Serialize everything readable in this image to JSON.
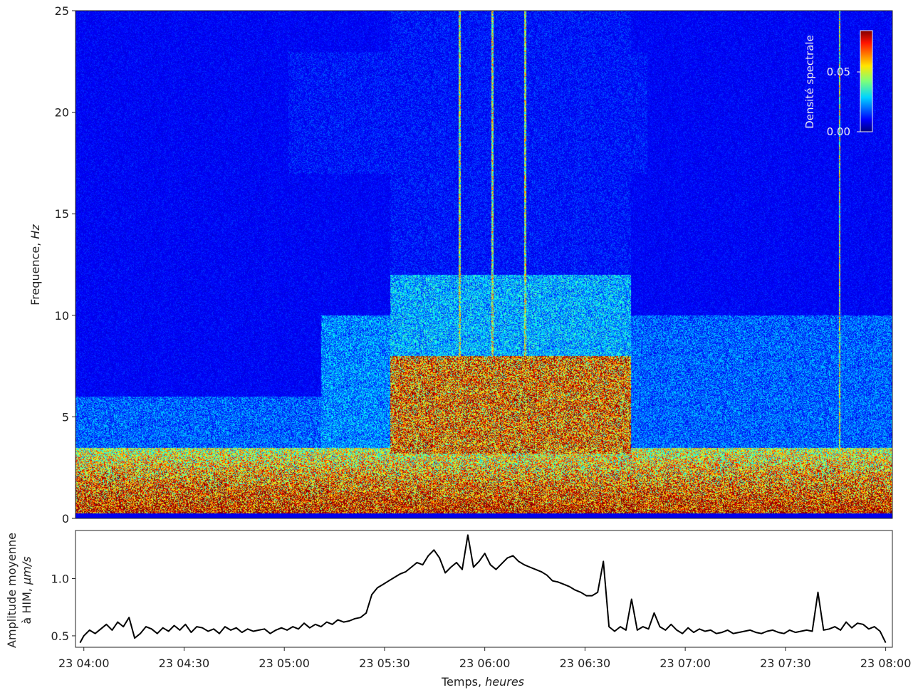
{
  "chart_data": [
    {
      "type": "heatmap",
      "ylabel_main": "Frequence, ",
      "ylabel_unit": "Hz",
      "yticks": [
        "0",
        "5",
        "10",
        "15",
        "20",
        "25"
      ],
      "ylim": [
        0,
        25
      ],
      "colorbar": {
        "label": "Densité spectrale",
        "ticks": [
          "0.00",
          "0.05"
        ],
        "range": [
          0.0,
          0.07
        ],
        "colormap": "jet",
        "placement": "top-right"
      },
      "x_start": "23 03:57",
      "x_end": "23 08:02",
      "bursts": [
        {
          "time": "23 05:36",
          "note": "broadband energy increase 3–12 Hz"
        },
        {
          "time": "23 06:45",
          "note": "energy decrease"
        }
      ],
      "colors": {
        "background": "#00008f",
        "high": "#8b0000"
      }
    },
    {
      "type": "line",
      "ylabel_line1": "Amplitude moyenne",
      "ylabel_line2": "à HIM, ",
      "ylabel_unit": "μm/s",
      "yticks": [
        "0.5",
        "1.0"
      ],
      "ylim": [
        0.4,
        1.42
      ],
      "xlabel_main": "Temps, ",
      "xlabel_unit": "heures",
      "xticks": [
        "23 04:00",
        "23 04:30",
        "23 05:00",
        "23 05:30",
        "23 06:00",
        "23 06:30",
        "23 07:00",
        "23 07:30",
        "23 08:00"
      ],
      "x_range_minutes": [
        -2.5,
        242
      ],
      "series": [
        {
          "color": "#000000",
          "points": [
            [
              -2,
              0.44
            ],
            [
              0,
              0.5
            ],
            [
              3,
              0.55
            ],
            [
              6,
              0.52
            ],
            [
              9,
              0.56
            ],
            [
              12,
              0.6
            ],
            [
              15,
              0.55
            ],
            [
              18,
              0.62
            ],
            [
              21,
              0.58
            ],
            [
              24,
              0.66
            ],
            [
              27,
              0.48
            ],
            [
              30,
              0.52
            ],
            [
              33,
              0.58
            ],
            [
              36,
              0.56
            ],
            [
              39,
              0.52
            ],
            [
              42,
              0.57
            ],
            [
              45,
              0.54
            ],
            [
              48,
              0.59
            ],
            [
              51,
              0.55
            ],
            [
              54,
              0.6
            ],
            [
              57,
              0.53
            ],
            [
              60,
              0.58
            ],
            [
              63,
              0.57
            ],
            [
              66,
              0.54
            ],
            [
              69,
              0.56
            ],
            [
              72,
              0.52
            ],
            [
              75,
              0.58
            ],
            [
              78,
              0.55
            ],
            [
              81,
              0.57
            ],
            [
              84,
              0.53
            ],
            [
              87,
              0.56
            ],
            [
              90,
              0.54
            ],
            [
              93,
              0.55
            ],
            [
              96,
              0.56
            ],
            [
              99,
              0.52
            ],
            [
              102,
              0.55
            ],
            [
              105,
              0.57
            ],
            [
              108,
              0.55
            ],
            [
              111,
              0.58
            ],
            [
              114,
              0.56
            ],
            [
              117,
              0.61
            ],
            [
              120,
              0.57
            ],
            [
              123,
              0.6
            ],
            [
              126,
              0.58
            ],
            [
              129,
              0.62
            ],
            [
              132,
              0.6
            ],
            [
              135,
              0.64
            ],
            [
              138,
              0.62
            ],
            [
              141,
              0.63
            ],
            [
              144,
              0.65
            ],
            [
              147,
              0.66
            ],
            [
              150,
              0.7
            ],
            [
              153,
              0.86
            ],
            [
              156,
              0.92
            ],
            [
              159,
              0.95
            ],
            [
              162,
              0.98
            ],
            [
              165,
              1.01
            ],
            [
              168,
              1.04
            ],
            [
              171,
              1.06
            ],
            [
              174,
              1.1
            ],
            [
              177,
              1.14
            ],
            [
              180,
              1.12
            ],
            [
              183,
              1.2
            ],
            [
              186,
              1.25
            ],
            [
              189,
              1.18
            ],
            [
              192,
              1.05
            ],
            [
              195,
              1.1
            ],
            [
              198,
              1.14
            ],
            [
              201,
              1.08
            ],
            [
              204,
              1.38
            ],
            [
              207,
              1.1
            ],
            [
              210,
              1.15
            ],
            [
              213,
              1.22
            ],
            [
              216,
              1.12
            ],
            [
              219,
              1.08
            ],
            [
              222,
              1.13
            ],
            [
              225,
              1.18
            ],
            [
              228,
              1.2
            ],
            [
              231,
              1.15
            ],
            [
              234,
              1.12
            ],
            [
              237,
              1.1
            ],
            [
              240,
              1.08
            ],
            [
              243,
              1.06
            ],
            [
              246,
              1.03
            ],
            [
              249,
              0.98
            ],
            [
              252,
              0.97
            ],
            [
              255,
              0.95
            ],
            [
              258,
              0.93
            ],
            [
              261,
              0.9
            ],
            [
              264,
              0.88
            ],
            [
              267,
              0.85
            ],
            [
              270,
              0.85
            ],
            [
              273,
              0.88
            ],
            [
              276,
              1.15
            ],
            [
              279,
              0.58
            ],
            [
              282,
              0.54
            ],
            [
              285,
              0.58
            ],
            [
              288,
              0.55
            ],
            [
              291,
              0.82
            ],
            [
              294,
              0.55
            ],
            [
              297,
              0.58
            ],
            [
              300,
              0.56
            ],
            [
              303,
              0.7
            ],
            [
              306,
              0.58
            ],
            [
              309,
              0.55
            ],
            [
              312,
              0.6
            ],
            [
              315,
              0.55
            ],
            [
              318,
              0.52
            ],
            [
              321,
              0.57
            ],
            [
              324,
              0.53
            ],
            [
              327,
              0.56
            ],
            [
              330,
              0.54
            ],
            [
              333,
              0.55
            ],
            [
              336,
              0.52
            ],
            [
              339,
              0.53
            ],
            [
              342,
              0.55
            ],
            [
              345,
              0.52
            ],
            [
              348,
              0.53
            ],
            [
              351,
              0.54
            ],
            [
              354,
              0.55
            ],
            [
              357,
              0.53
            ],
            [
              360,
              0.52
            ],
            [
              363,
              0.54
            ],
            [
              366,
              0.55
            ],
            [
              369,
              0.53
            ],
            [
              372,
              0.52
            ],
            [
              375,
              0.55
            ],
            [
              378,
              0.53
            ],
            [
              381,
              0.54
            ],
            [
              384,
              0.55
            ],
            [
              387,
              0.54
            ],
            [
              390,
              0.88
            ],
            [
              393,
              0.55
            ],
            [
              396,
              0.56
            ],
            [
              399,
              0.58
            ],
            [
              402,
              0.55
            ],
            [
              405,
              0.62
            ],
            [
              408,
              0.57
            ],
            [
              411,
              0.61
            ],
            [
              414,
              0.6
            ],
            [
              417,
              0.56
            ],
            [
              420,
              0.58
            ],
            [
              423,
              0.54
            ],
            [
              426,
              0.44
            ]
          ]
        }
      ]
    }
  ]
}
